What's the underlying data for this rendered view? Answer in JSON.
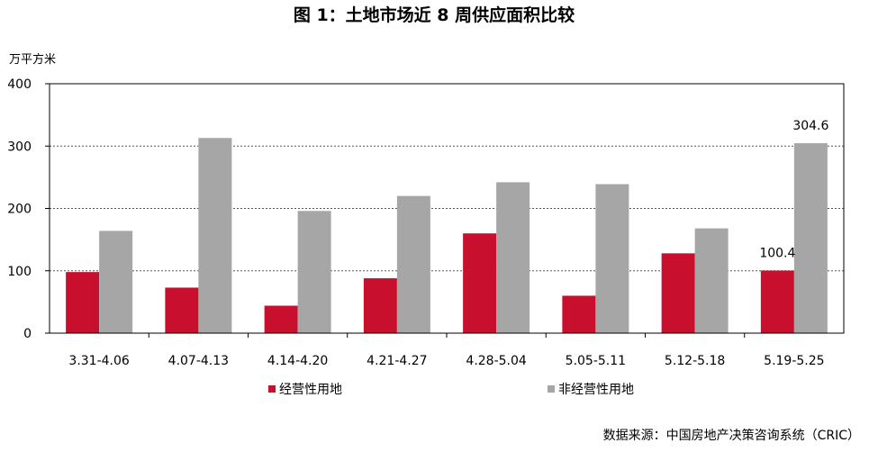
{
  "chart_data": {
    "type": "bar",
    "title": "图 1：土地市场近 8 周供应面积比较",
    "ylabel": "万平方米",
    "ylim": [
      0,
      400
    ],
    "yticks": [
      0,
      100,
      200,
      300,
      400
    ],
    "grid": true,
    "categories": [
      "3.31-4.06",
      "4.07-4.13",
      "4.14-4.20",
      "4.21-4.27",
      "4.28-5.04",
      "5.05-5.11",
      "5.12-5.18",
      "5.19-5.25"
    ],
    "series": [
      {
        "name": "经营性用地",
        "color": "#c8102e",
        "values": [
          98,
          73,
          44,
          88,
          160,
          60,
          128,
          100.4
        ]
      },
      {
        "name": "非经营性用地",
        "color": "#a6a6a6",
        "values": [
          164,
          313,
          196,
          220,
          242,
          239,
          168,
          304.6
        ]
      }
    ],
    "data_labels": [
      {
        "series": 0,
        "index": 7,
        "text": "100.4"
      },
      {
        "series": 1,
        "index": 7,
        "text": "304.6"
      }
    ],
    "legend_position": "bottom-left",
    "source": "数据来源：中国房地产决策咨询系统（CRIC）"
  }
}
